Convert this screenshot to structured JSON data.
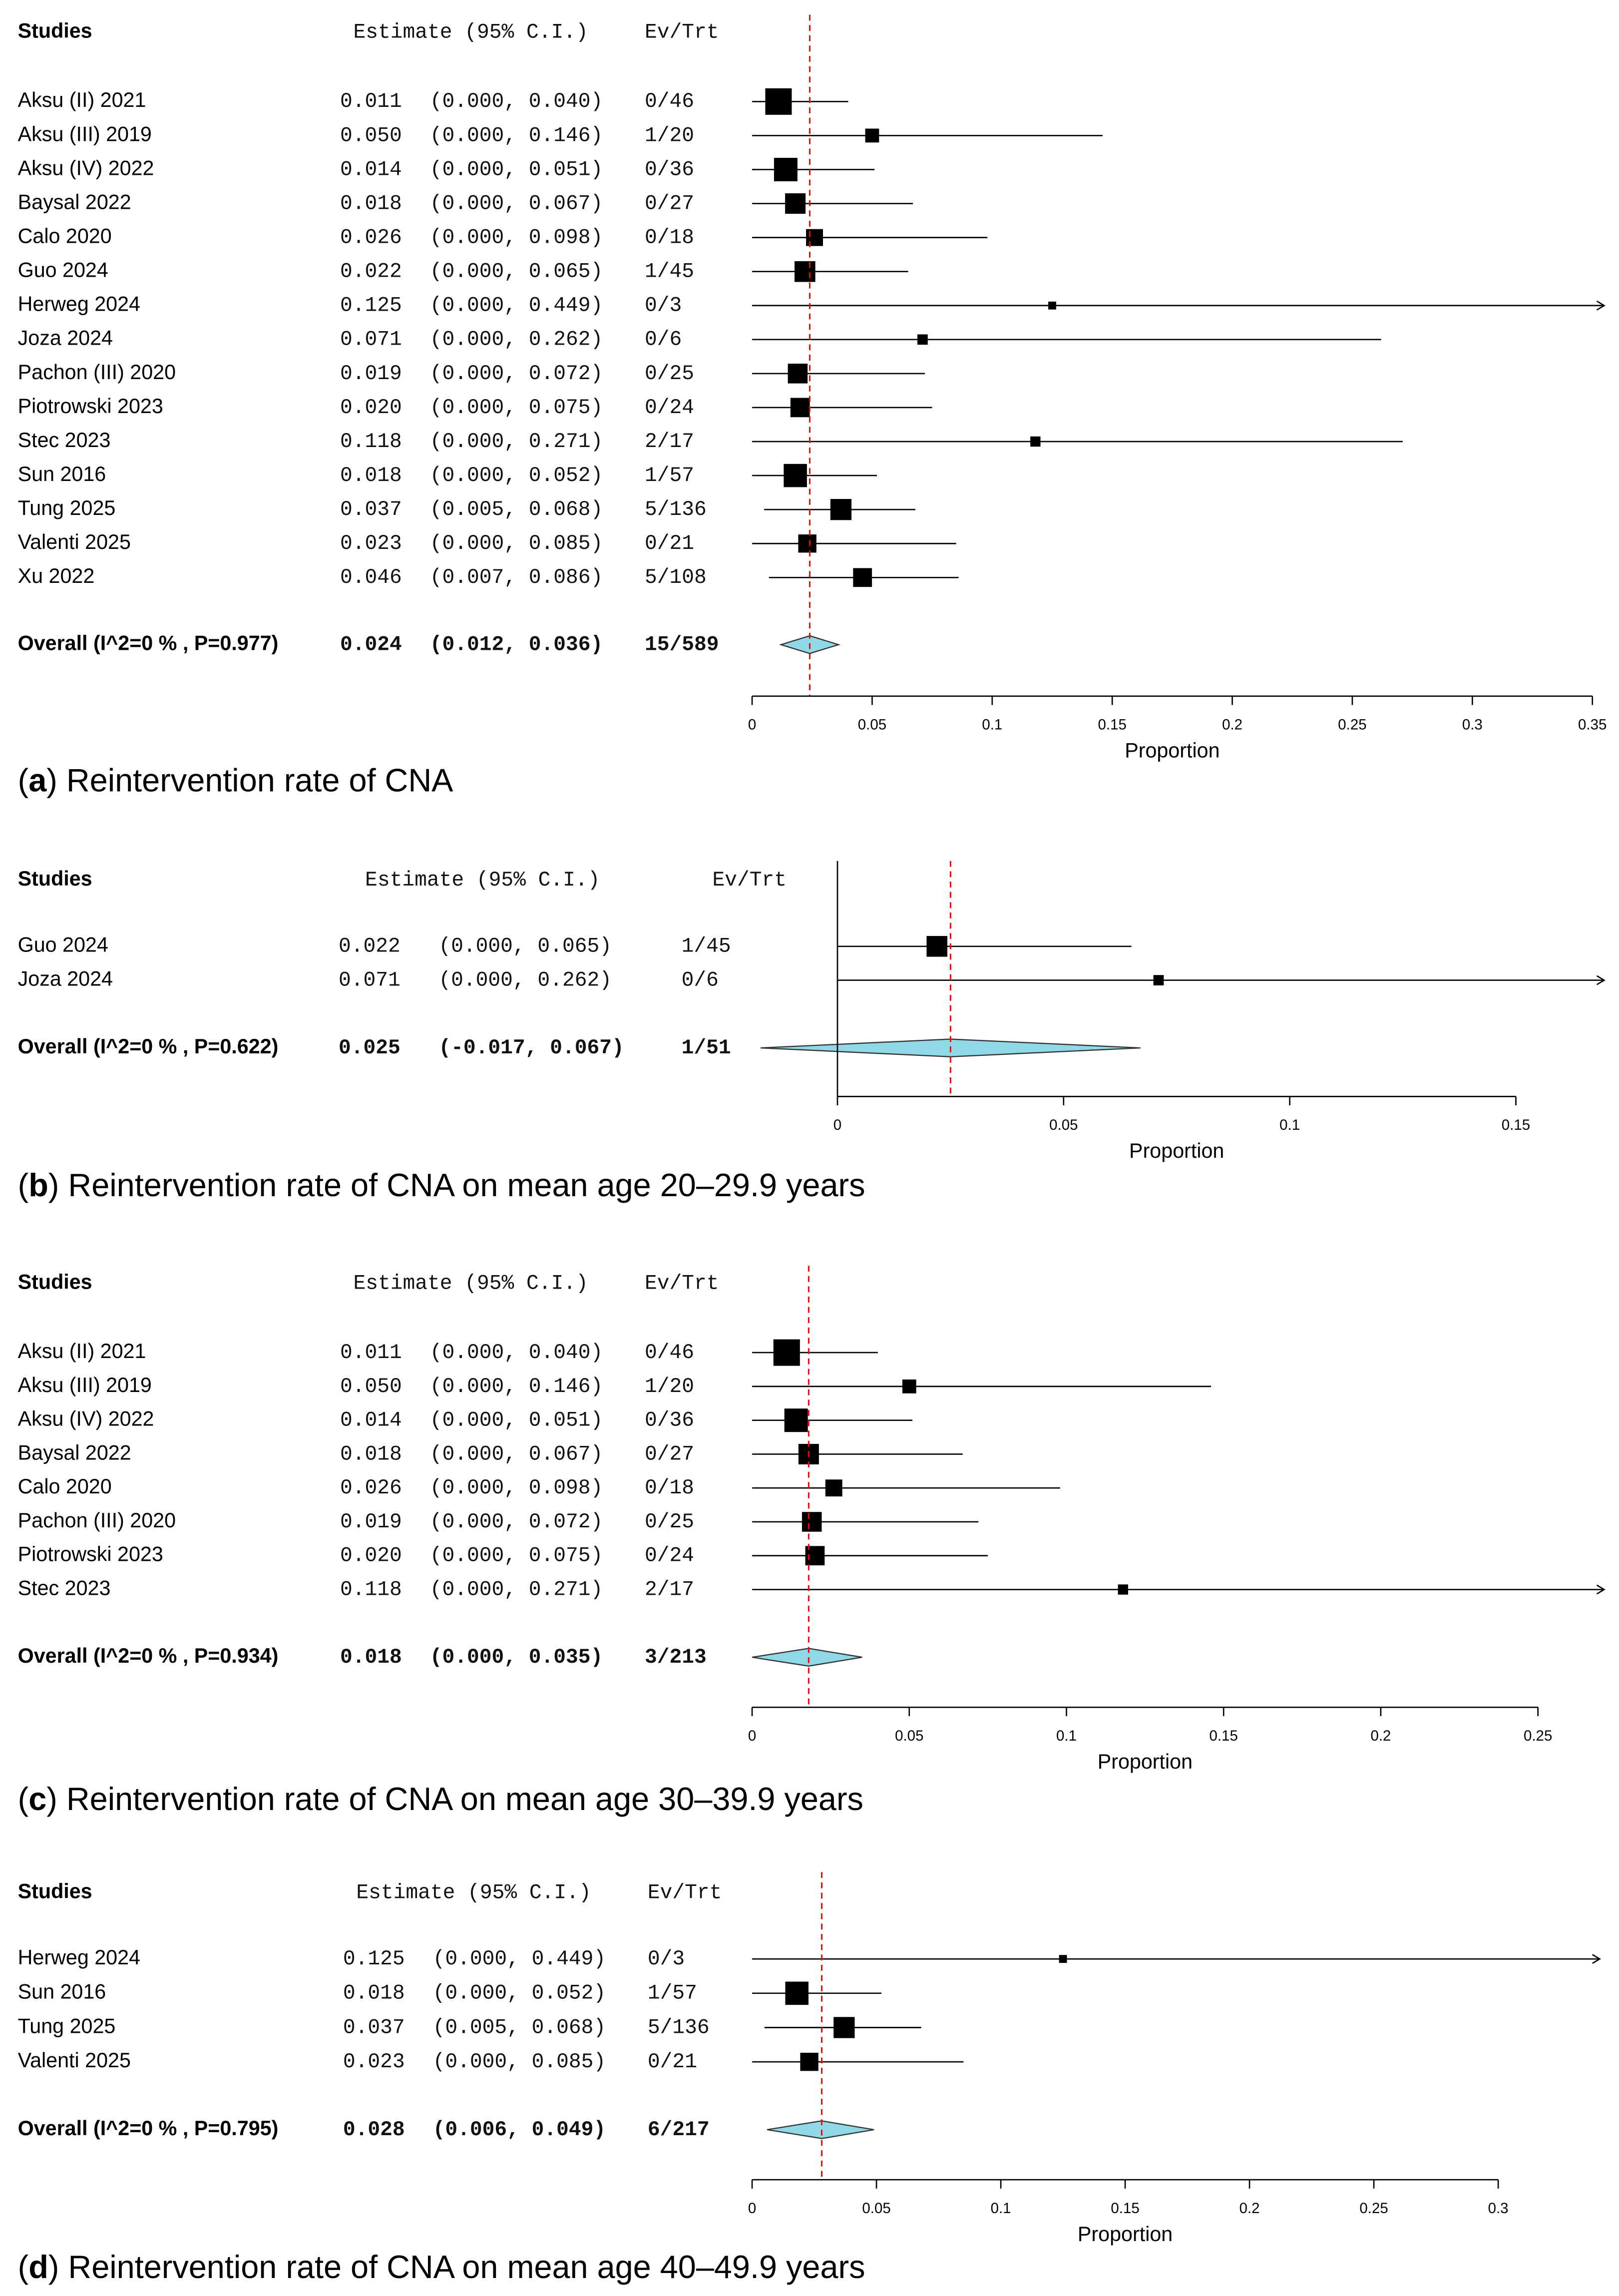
{
  "colors": {
    "reference_line": "#ff0000",
    "diamond": "#8fd8e6",
    "marker": "#000000"
  },
  "chart_data": [
    {
      "type": "forest",
      "panel": "a",
      "caption": "Reintervention rate of CNA",
      "headers": {
        "studies": "Studies",
        "estimate": "Estimate (95% C.I.)",
        "evtrt": "Ev/Trt"
      },
      "xlabel": "Proportion",
      "xlim": [
        0,
        0.35
      ],
      "ticks": [
        "0",
        "0.05",
        "0.1",
        "0.15",
        "0.2",
        "0.25",
        "0.3",
        "0.35"
      ],
      "studies": [
        {
          "name": "Aksu (II) 2021",
          "est": "0.011",
          "ci": "(0.000, 0.040)",
          "evtrt": "0/46",
          "value": 0.011,
          "lo": 0.0,
          "hi": 0.04
        },
        {
          "name": "Aksu (III) 2019",
          "est": "0.050",
          "ci": "(0.000, 0.146)",
          "evtrt": "1/20",
          "value": 0.05,
          "lo": 0.0,
          "hi": 0.146
        },
        {
          "name": "Aksu (IV) 2022",
          "est": "0.014",
          "ci": "(0.000, 0.051)",
          "evtrt": "0/36",
          "value": 0.014,
          "lo": 0.0,
          "hi": 0.051
        },
        {
          "name": "Baysal 2022",
          "est": "0.018",
          "ci": "(0.000, 0.067)",
          "evtrt": "0/27",
          "value": 0.018,
          "lo": 0.0,
          "hi": 0.067
        },
        {
          "name": "Calo 2020",
          "est": "0.026",
          "ci": "(0.000, 0.098)",
          "evtrt": "0/18",
          "value": 0.026,
          "lo": 0.0,
          "hi": 0.098
        },
        {
          "name": "Guo 2024",
          "est": "0.022",
          "ci": "(0.000, 0.065)",
          "evtrt": "1/45",
          "value": 0.022,
          "lo": 0.0,
          "hi": 0.065
        },
        {
          "name": "Herweg 2024",
          "est": "0.125",
          "ci": "(0.000, 0.449)",
          "evtrt": "0/3",
          "value": 0.125,
          "lo": 0.0,
          "hi": 0.449
        },
        {
          "name": "Joza 2024",
          "est": "0.071",
          "ci": "(0.000, 0.262)",
          "evtrt": "0/6",
          "value": 0.071,
          "lo": 0.0,
          "hi": 0.262
        },
        {
          "name": "Pachon (III) 2020",
          "est": "0.019",
          "ci": "(0.000, 0.072)",
          "evtrt": "0/25",
          "value": 0.019,
          "lo": 0.0,
          "hi": 0.072
        },
        {
          "name": "Piotrowski 2023",
          "est": "0.020",
          "ci": "(0.000, 0.075)",
          "evtrt": "0/24",
          "value": 0.02,
          "lo": 0.0,
          "hi": 0.075
        },
        {
          "name": "Stec 2023",
          "est": "0.118",
          "ci": "(0.000, 0.271)",
          "evtrt": "2/17",
          "value": 0.118,
          "lo": 0.0,
          "hi": 0.271
        },
        {
          "name": "Sun 2016",
          "est": "0.018",
          "ci": "(0.000, 0.052)",
          "evtrt": "1/57",
          "value": 0.018,
          "lo": 0.0,
          "hi": 0.052
        },
        {
          "name": "Tung 2025",
          "est": "0.037",
          "ci": "(0.005, 0.068)",
          "evtrt": "5/136",
          "value": 0.037,
          "lo": 0.005,
          "hi": 0.068
        },
        {
          "name": "Valenti 2025",
          "est": "0.023",
          "ci": "(0.000, 0.085)",
          "evtrt": "0/21",
          "value": 0.023,
          "lo": 0.0,
          "hi": 0.085
        },
        {
          "name": "Xu 2022",
          "est": "0.046",
          "ci": "(0.007, 0.086)",
          "evtrt": "5/108",
          "value": 0.046,
          "lo": 0.007,
          "hi": 0.086
        }
      ],
      "overall": {
        "name": "Overall (I^2=0 % , P=0.977)",
        "est": "0.024",
        "ci": "(0.012, 0.036)",
        "evtrt": "15/589",
        "value": 0.024,
        "lo": 0.012,
        "hi": 0.036
      }
    },
    {
      "type": "forest",
      "panel": "b",
      "caption": "Reintervention rate of CNA on mean age 20–29.9 years",
      "headers": {
        "studies": "Studies",
        "estimate": "Estimate (95% C.I.)",
        "evtrt": "Ev/Trt"
      },
      "xlabel": "Proportion",
      "xlim": [
        0,
        0.15
      ],
      "ticks": [
        "0",
        "0.05",
        "0.1",
        "0.15"
      ],
      "studies": [
        {
          "name": "Guo 2024",
          "est": "0.022",
          "ci": "(0.000, 0.065)",
          "evtrt": "1/45",
          "value": 0.022,
          "lo": 0.0,
          "hi": 0.065
        },
        {
          "name": "Joza 2024",
          "est": "0.071",
          "ci": "(0.000, 0.262)",
          "evtrt": "0/6",
          "value": 0.071,
          "lo": 0.0,
          "hi": 0.262
        }
      ],
      "overall": {
        "name": "Overall (I^2=0 % , P=0.622)",
        "est": "0.025",
        "ci": "(-0.017, 0.067)",
        "evtrt": "1/51",
        "value": 0.025,
        "lo": -0.017,
        "hi": 0.067
      }
    },
    {
      "type": "forest",
      "panel": "c",
      "caption": "Reintervention rate of CNA on mean age 30–39.9 years",
      "headers": {
        "studies": "Studies",
        "estimate": "Estimate (95% C.I.)",
        "evtrt": "Ev/Trt"
      },
      "xlabel": "Proportion",
      "xlim": [
        0,
        0.25
      ],
      "ticks": [
        "0",
        "0.05",
        "0.1",
        "0.15",
        "0.2",
        "0.25"
      ],
      "studies": [
        {
          "name": "Aksu (II) 2021",
          "est": "0.011",
          "ci": "(0.000, 0.040)",
          "evtrt": "0/46",
          "value": 0.011,
          "lo": 0.0,
          "hi": 0.04
        },
        {
          "name": "Aksu (III) 2019",
          "est": "0.050",
          "ci": "(0.000, 0.146)",
          "evtrt": "1/20",
          "value": 0.05,
          "lo": 0.0,
          "hi": 0.146
        },
        {
          "name": "Aksu (IV) 2022",
          "est": "0.014",
          "ci": "(0.000, 0.051)",
          "evtrt": "0/36",
          "value": 0.014,
          "lo": 0.0,
          "hi": 0.051
        },
        {
          "name": "Baysal 2022",
          "est": "0.018",
          "ci": "(0.000, 0.067)",
          "evtrt": "0/27",
          "value": 0.018,
          "lo": 0.0,
          "hi": 0.067
        },
        {
          "name": "Calo 2020",
          "est": "0.026",
          "ci": "(0.000, 0.098)",
          "evtrt": "0/18",
          "value": 0.026,
          "lo": 0.0,
          "hi": 0.098
        },
        {
          "name": "Pachon (III) 2020",
          "est": "0.019",
          "ci": "(0.000, 0.072)",
          "evtrt": "0/25",
          "value": 0.019,
          "lo": 0.0,
          "hi": 0.072
        },
        {
          "name": "Piotrowski 2023",
          "est": "0.020",
          "ci": "(0.000, 0.075)",
          "evtrt": "0/24",
          "value": 0.02,
          "lo": 0.0,
          "hi": 0.075
        },
        {
          "name": "Stec 2023",
          "est": "0.118",
          "ci": "(0.000, 0.271)",
          "evtrt": "2/17",
          "value": 0.118,
          "lo": 0.0,
          "hi": 0.271
        }
      ],
      "overall": {
        "name": "Overall (I^2=0 % , P=0.934)",
        "est": "0.018",
        "ci": "(0.000, 0.035)",
        "evtrt": "3/213",
        "value": 0.018,
        "lo": 0.0,
        "hi": 0.035
      }
    },
    {
      "type": "forest",
      "panel": "d",
      "caption": "Reintervention rate of CNA on mean age 40–49.9 years",
      "headers": {
        "studies": "Studies",
        "estimate": "Estimate (95% C.I.)",
        "evtrt": "Ev/Trt"
      },
      "xlabel": "Proportion",
      "xlim": [
        0,
        0.3
      ],
      "ticks": [
        "0",
        "0.05",
        "0.1",
        "0.15",
        "0.2",
        "0.25",
        "0.3"
      ],
      "studies": [
        {
          "name": "Herweg 2024",
          "est": "0.125",
          "ci": "(0.000, 0.449)",
          "evtrt": "0/3",
          "value": 0.125,
          "lo": 0.0,
          "hi": 0.449
        },
        {
          "name": "Sun 2016",
          "est": "0.018",
          "ci": "(0.000, 0.052)",
          "evtrt": "1/57",
          "value": 0.018,
          "lo": 0.0,
          "hi": 0.052
        },
        {
          "name": "Tung 2025",
          "est": "0.037",
          "ci": "(0.005, 0.068)",
          "evtrt": "5/136",
          "value": 0.037,
          "lo": 0.005,
          "hi": 0.068
        },
        {
          "name": "Valenti 2025",
          "est": "0.023",
          "ci": "(0.000, 0.085)",
          "evtrt": "0/21",
          "value": 0.023,
          "lo": 0.0,
          "hi": 0.085
        }
      ],
      "overall": {
        "name": "Overall (I^2=0 % , P=0.795)",
        "est": "0.028",
        "ci": "(0.006, 0.049)",
        "evtrt": "6/217",
        "value": 0.028,
        "lo": 0.006,
        "hi": 0.049
      }
    }
  ]
}
